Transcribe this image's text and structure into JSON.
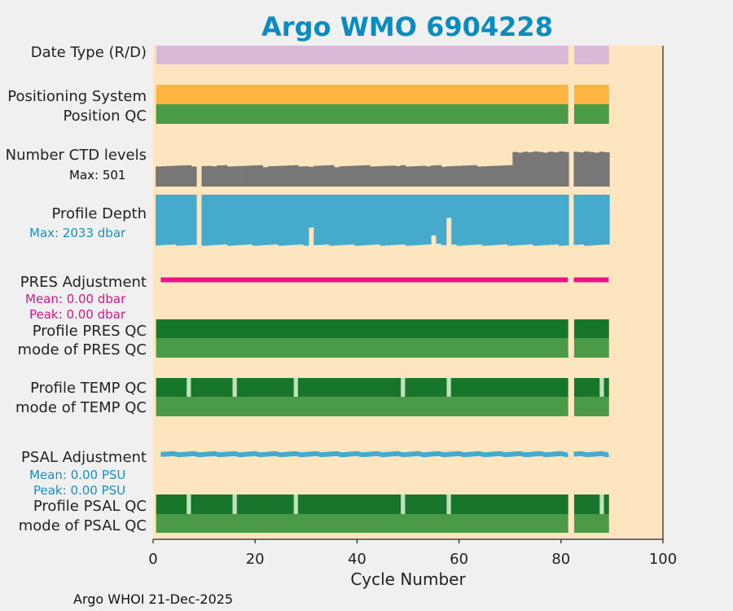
{
  "chart_data": {
    "type": "timeline",
    "title": "Argo WMO 6904228",
    "xlabel": "Cycle Number",
    "xlim": [
      0,
      100
    ],
    "xticks": [
      0,
      20,
      40,
      60,
      80,
      100
    ],
    "cycle_range": [
      1,
      89
    ],
    "missing_cycles": [
      82
    ],
    "rows": [
      {
        "key": "date_type",
        "label": "Date Type (R/D)",
        "color": "#d8b9d8"
      },
      {
        "key": "pos_sys",
        "label": "Positioning System",
        "color": "#fdb441"
      },
      {
        "key": "pos_qc",
        "label": "Position QC",
        "color": "#4a9a48"
      },
      {
        "key": "nlev",
        "label": "Number CTD levels",
        "note": "Max: 501",
        "color": "#777777"
      },
      {
        "key": "depth",
        "label": "Profile Depth",
        "note": "Max: 2033 dbar",
        "color": "#45aacc"
      },
      {
        "key": "pres_adj",
        "label": "PRES Adjustment",
        "notes": [
          "Mean: 0.00 dbar",
          "Peak: 0.00 dbar"
        ],
        "color": "#ee1188"
      },
      {
        "key": "pres_qc",
        "label": "Profile PRES QC",
        "color": "#18762a"
      },
      {
        "key": "pres_mode",
        "label": "mode of PRES QC",
        "color": "#4a9a48"
      },
      {
        "key": "temp_qc",
        "label": "Profile TEMP QC",
        "color": "#18762a",
        "light_cycles": [
          7,
          16,
          28,
          49,
          58,
          88
        ]
      },
      {
        "key": "temp_mode",
        "label": "mode of TEMP QC",
        "color": "#4a9a48"
      },
      {
        "key": "psal_adj",
        "label": "PSAL Adjustment",
        "notes": [
          "Mean: 0.00 PSU",
          "Peak: 0.00 PSU"
        ],
        "color": "#45aacc"
      },
      {
        "key": "psal_qc",
        "label": "Profile PSAL QC",
        "color": "#18762a",
        "light_cycles": [
          7,
          16,
          28,
          49,
          58,
          88
        ]
      },
      {
        "key": "psal_mode",
        "label": "mode of PSAL QC",
        "color": "#4a9a48"
      }
    ],
    "note_colors": {
      "nlev": "#111111",
      "depth": "#1a8fbf",
      "pres_adj": "#e0118a",
      "psal_adj": "#1a8fbf"
    },
    "light_qc_color": "#bfe2bd",
    "background_color": "#fde6bf",
    "title_color": "#0a8cc0",
    "footer": "Argo WHOI 21-Dec-2025"
  }
}
